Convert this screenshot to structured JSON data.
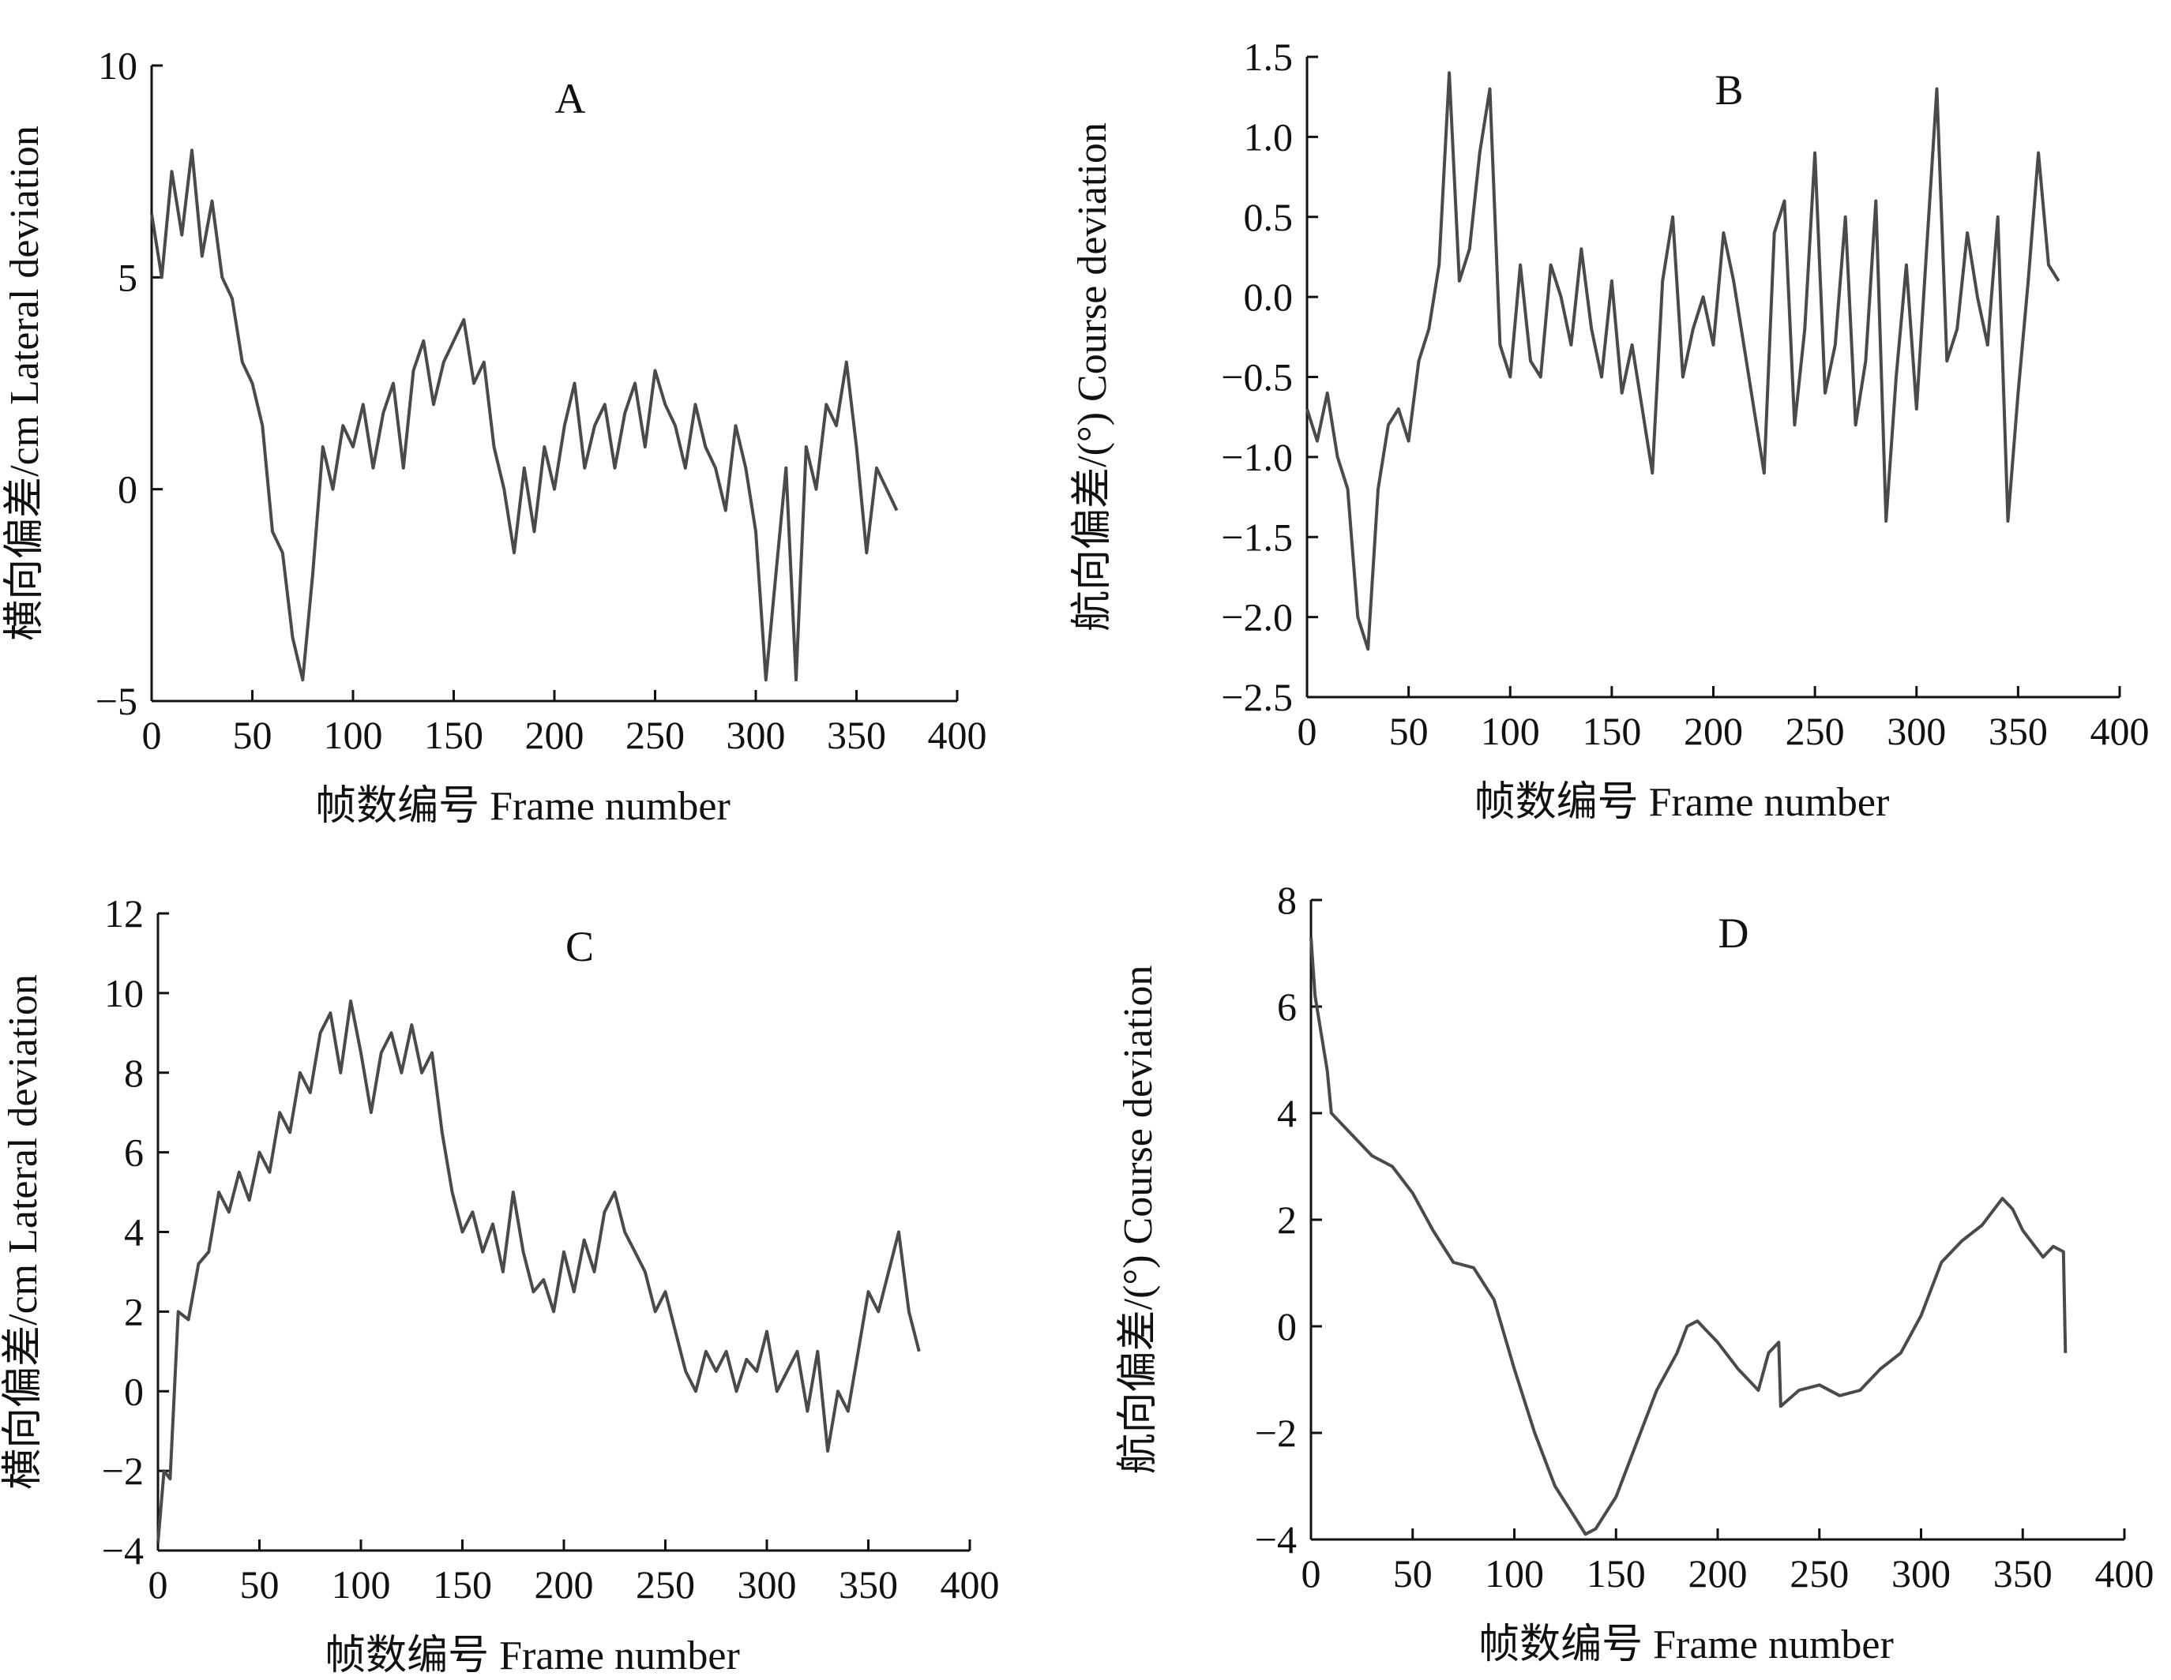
{
  "figure": {
    "panels": [
      "A",
      "B",
      "C",
      "D"
    ]
  },
  "chart_data": [
    {
      "panel": "A",
      "type": "line",
      "title": "A",
      "xlabel": "帧数编号  Frame number",
      "ylabel": "横向偏差/cm  Lateral deviation",
      "xlim": [
        0,
        400
      ],
      "ylim": [
        -5,
        10
      ],
      "xticks": [
        0,
        50,
        100,
        150,
        200,
        250,
        300,
        350,
        400
      ],
      "yticks": [
        -5,
        0,
        5,
        10
      ],
      "xtick_labels": [
        "0",
        "50",
        "100",
        "150",
        "200",
        "250",
        "300",
        "350",
        "400"
      ],
      "ytick_labels": [
        "−5",
        "0",
        "5",
        "10"
      ],
      "color": "#4a4a4a",
      "series": [
        {
          "x": [
            0,
            5,
            10,
            15,
            20,
            25,
            30,
            35,
            40,
            45,
            50,
            55,
            60,
            65,
            70,
            75,
            80,
            85,
            90,
            95,
            100,
            105,
            110,
            115,
            120,
            125,
            130,
            135,
            140,
            145,
            150,
            155,
            160,
            165,
            170,
            175,
            180,
            185,
            190,
            195,
            200,
            205,
            210,
            215,
            220,
            225,
            230,
            235,
            240,
            245,
            250,
            255,
            260,
            265,
            270,
            275,
            280,
            285,
            290,
            295,
            300,
            305,
            310,
            315,
            320,
            325,
            330,
            335,
            340,
            345,
            350,
            355,
            360,
            365,
            370
          ],
          "y": [
            6.5,
            5.0,
            7.5,
            6.0,
            8.0,
            5.5,
            6.8,
            5.0,
            4.5,
            3.0,
            2.5,
            1.5,
            -1.0,
            -1.5,
            -3.5,
            -4.5,
            -2.0,
            1.0,
            0.0,
            1.5,
            1.0,
            2.0,
            0.5,
            1.8,
            2.5,
            0.5,
            2.8,
            3.5,
            2.0,
            3.0,
            3.5,
            4.0,
            2.5,
            3.0,
            1.0,
            0.0,
            -1.5,
            0.5,
            -1.0,
            1.0,
            0.0,
            1.5,
            2.5,
            0.5,
            1.5,
            2.0,
            0.5,
            1.8,
            2.5,
            1.0,
            2.8,
            2.0,
            1.5,
            0.5,
            2.0,
            1.0,
            0.5,
            -0.5,
            1.5,
            0.5,
            -1.0,
            -4.5,
            -2.0,
            0.5,
            -4.5,
            1.0,
            0.0,
            2.0,
            1.5,
            3.0,
            1.0,
            -1.5,
            0.5,
            0.0,
            -0.5
          ]
        }
      ]
    },
    {
      "panel": "B",
      "type": "line",
      "title": "B",
      "xlabel": "帧数编号  Frame number",
      "ylabel": "航向偏差/(°)  Course deviation",
      "xlim": [
        0,
        400
      ],
      "ylim": [
        -2.5,
        1.5
      ],
      "xticks": [
        0,
        50,
        100,
        150,
        200,
        250,
        300,
        350,
        400
      ],
      "yticks": [
        -2.5,
        -2.0,
        -1.5,
        -1.0,
        -0.5,
        0.0,
        0.5,
        1.0,
        1.5
      ],
      "xtick_labels": [
        "0",
        "50",
        "100",
        "150",
        "200",
        "250",
        "300",
        "350",
        "400"
      ],
      "ytick_labels": [
        "−2.5",
        "−2.0",
        "−1.5",
        "−1.0",
        "−0.5",
        "0.0",
        "0.5",
        "1.0",
        "1.5"
      ],
      "color": "#4a4a4a",
      "series": [
        {
          "x": [
            0,
            5,
            10,
            15,
            20,
            25,
            30,
            35,
            40,
            45,
            50,
            55,
            60,
            65,
            70,
            75,
            80,
            85,
            90,
            95,
            100,
            105,
            110,
            115,
            120,
            125,
            130,
            135,
            140,
            145,
            150,
            155,
            160,
            165,
            170,
            175,
            180,
            185,
            190,
            195,
            200,
            205,
            210,
            215,
            220,
            225,
            230,
            235,
            240,
            245,
            250,
            255,
            260,
            265,
            270,
            275,
            280,
            285,
            290,
            295,
            300,
            305,
            310,
            315,
            320,
            325,
            330,
            335,
            340,
            345,
            350,
            355,
            360,
            365,
            370
          ],
          "y": [
            -0.7,
            -0.9,
            -0.6,
            -1.0,
            -1.2,
            -2.0,
            -2.2,
            -1.2,
            -0.8,
            -0.7,
            -0.9,
            -0.4,
            -0.2,
            0.2,
            1.4,
            0.1,
            0.3,
            0.9,
            1.3,
            -0.3,
            -0.5,
            0.2,
            -0.4,
            -0.5,
            0.2,
            0.0,
            -0.3,
            0.3,
            -0.2,
            -0.5,
            0.1,
            -0.6,
            -0.3,
            -0.7,
            -1.1,
            0.1,
            0.5,
            -0.5,
            -0.2,
            0.0,
            -0.3,
            0.4,
            0.1,
            -0.3,
            -0.7,
            -1.1,
            0.4,
            0.6,
            -0.8,
            -0.2,
            0.9,
            -0.6,
            -0.3,
            0.5,
            -0.8,
            -0.4,
            0.6,
            -1.4,
            -0.5,
            0.2,
            -0.7,
            0.3,
            1.3,
            -0.4,
            -0.2,
            0.4,
            0.0,
            -0.3,
            0.5,
            -1.4,
            -0.6,
            0.1,
            0.9,
            0.2,
            0.1
          ]
        }
      ]
    },
    {
      "panel": "C",
      "type": "line",
      "title": "C",
      "xlabel": "帧数编号  Frame number",
      "ylabel": "横向偏差/cm  Lateral deviation",
      "xlim": [
        0,
        400
      ],
      "ylim": [
        -4,
        12
      ],
      "xticks": [
        0,
        50,
        100,
        150,
        200,
        250,
        300,
        350,
        400
      ],
      "yticks": [
        -4,
        -2,
        0,
        2,
        4,
        6,
        8,
        10,
        12
      ],
      "xtick_labels": [
        "0",
        "50",
        "100",
        "150",
        "200",
        "250",
        "300",
        "350",
        "400"
      ],
      "ytick_labels": [
        "−4",
        "−2",
        "0",
        "2",
        "4",
        "6",
        "8",
        "10",
        "12"
      ],
      "color": "#4a4a4a",
      "series": [
        {
          "x": [
            0,
            3,
            6,
            10,
            15,
            20,
            25,
            30,
            35,
            40,
            45,
            50,
            55,
            60,
            65,
            70,
            75,
            80,
            85,
            90,
            95,
            100,
            105,
            110,
            115,
            120,
            125,
            130,
            135,
            140,
            145,
            150,
            155,
            160,
            165,
            170,
            175,
            180,
            185,
            190,
            195,
            200,
            205,
            210,
            215,
            220,
            225,
            230,
            235,
            240,
            245,
            250,
            255,
            260,
            265,
            270,
            275,
            280,
            285,
            290,
            295,
            300,
            305,
            310,
            315,
            320,
            325,
            330,
            335,
            340,
            345,
            350,
            355,
            360,
            365,
            370,
            375
          ],
          "y": [
            -3.8,
            -2.0,
            -2.2,
            2.0,
            1.8,
            3.2,
            3.5,
            5.0,
            4.5,
            5.5,
            4.8,
            6.0,
            5.5,
            7.0,
            6.5,
            8.0,
            7.5,
            9.0,
            9.5,
            8.0,
            9.8,
            8.5,
            7.0,
            8.5,
            9.0,
            8.0,
            9.2,
            8.0,
            8.5,
            6.5,
            5.0,
            4.0,
            4.5,
            3.5,
            4.2,
            3.0,
            5.0,
            3.5,
            2.5,
            2.8,
            2.0,
            3.5,
            2.5,
            3.8,
            3.0,
            4.5,
            5.0,
            4.0,
            3.5,
            3.0,
            2.0,
            2.5,
            1.5,
            0.5,
            0.0,
            1.0,
            0.5,
            1.0,
            0.0,
            0.8,
            0.5,
            1.5,
            0.0,
            0.5,
            1.0,
            -0.5,
            1.0,
            -1.5,
            0.0,
            -0.5,
            1.0,
            2.5,
            2.0,
            3.0,
            4.0,
            2.0,
            1.0
          ]
        }
      ]
    },
    {
      "panel": "D",
      "type": "line",
      "title": "D",
      "xlabel": "帧数编号  Frame number",
      "ylabel": "航向偏差/(°)  Course deviation",
      "xlim": [
        0,
        400
      ],
      "ylim": [
        -4,
        8
      ],
      "xticks": [
        0,
        50,
        100,
        150,
        200,
        250,
        300,
        350,
        400
      ],
      "yticks": [
        -4,
        -2,
        0,
        2,
        4,
        6,
        8
      ],
      "xtick_labels": [
        "0",
        "50",
        "100",
        "150",
        "200",
        "250",
        "300",
        "350",
        "400"
      ],
      "ytick_labels": [
        "−4",
        "−2",
        "0",
        "2",
        "4",
        "6",
        "8"
      ],
      "color": "#4a4a4a",
      "series": [
        {
          "x": [
            0,
            2,
            5,
            8,
            10,
            20,
            30,
            40,
            50,
            60,
            70,
            80,
            90,
            100,
            110,
            120,
            130,
            135,
            140,
            150,
            160,
            170,
            180,
            185,
            190,
            200,
            210,
            220,
            225,
            230,
            231,
            240,
            250,
            260,
            270,
            280,
            290,
            300,
            310,
            320,
            330,
            340,
            345,
            350,
            360,
            365,
            370,
            371
          ],
          "y": [
            7.3,
            6.2,
            5.5,
            4.8,
            4.0,
            3.6,
            3.2,
            3.0,
            2.5,
            1.8,
            1.2,
            1.1,
            0.5,
            -0.8,
            -2.0,
            -3.0,
            -3.6,
            -3.9,
            -3.8,
            -3.2,
            -2.2,
            -1.2,
            -0.5,
            0.0,
            0.1,
            -0.3,
            -0.8,
            -1.2,
            -0.5,
            -0.3,
            -1.5,
            -1.2,
            -1.1,
            -1.3,
            -1.2,
            -0.8,
            -0.5,
            0.2,
            1.2,
            1.6,
            1.9,
            2.4,
            2.2,
            1.8,
            1.3,
            1.5,
            1.4,
            -0.5
          ]
        }
      ]
    }
  ]
}
